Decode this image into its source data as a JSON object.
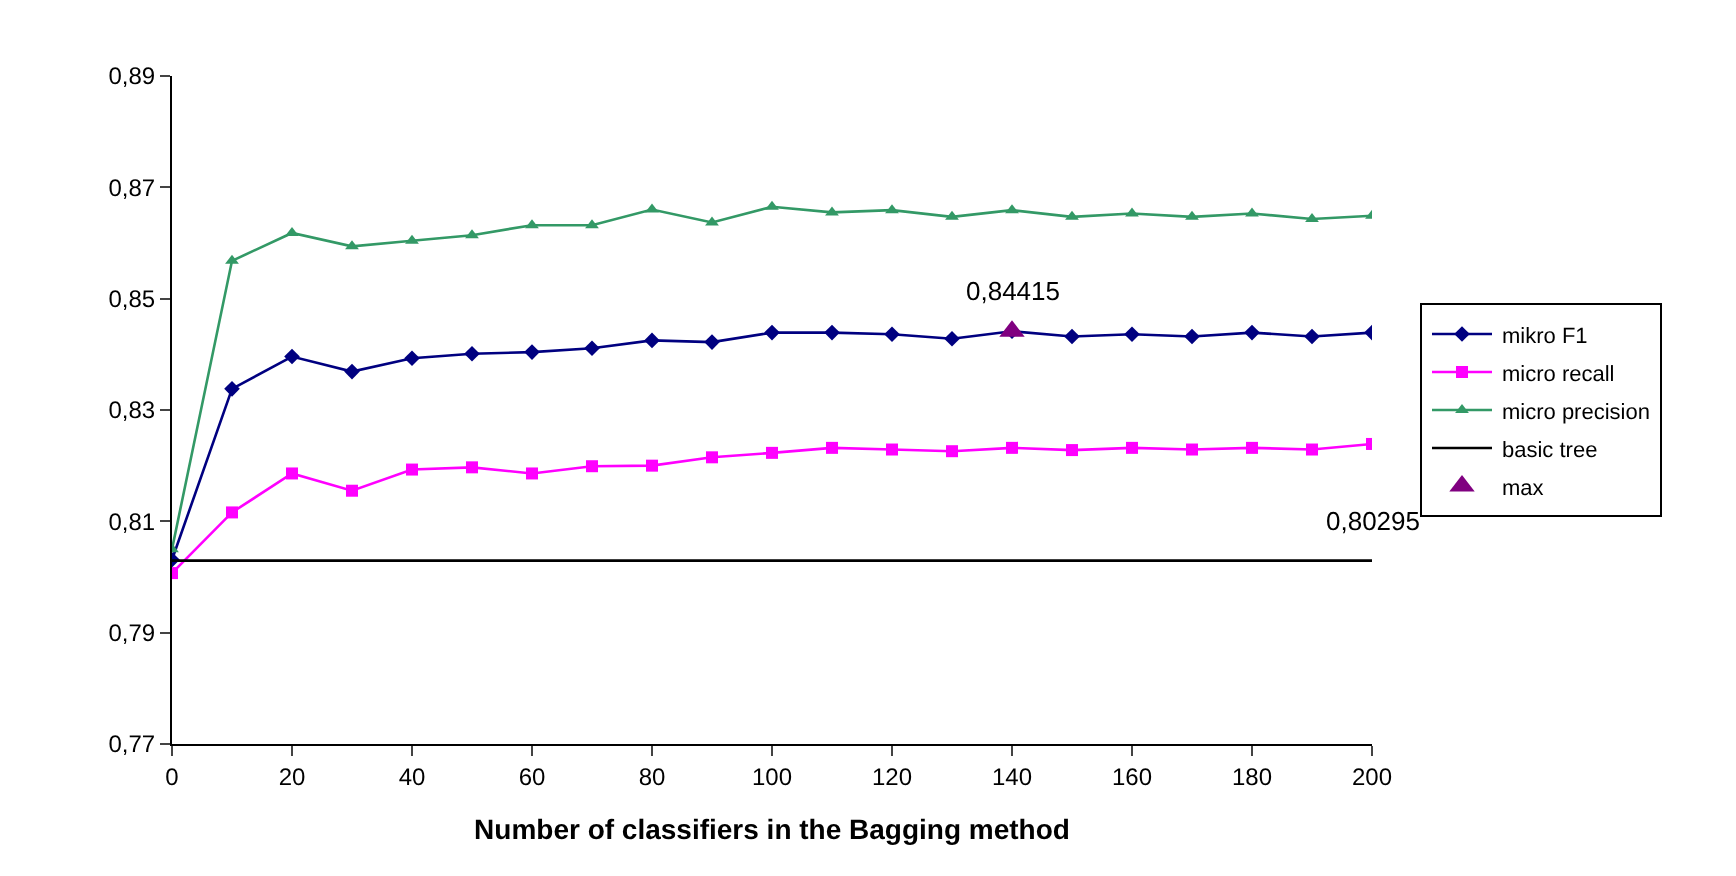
{
  "chart_data": {
    "type": "line",
    "xlabel": "Number of classifiers in the Bagging method",
    "x": [
      0,
      10,
      20,
      30,
      40,
      50,
      60,
      70,
      80,
      90,
      100,
      110,
      120,
      130,
      140,
      150,
      160,
      170,
      180,
      190,
      200
    ],
    "series": [
      {
        "name": "mikro F1",
        "color": "#000080",
        "marker": "diamond",
        "values": [
          0.8031,
          0.8338,
          0.8396,
          0.8369,
          0.8393,
          0.8401,
          0.8404,
          0.8411,
          0.8425,
          0.8422,
          0.8439,
          0.8439,
          0.8436,
          0.8428,
          0.84415,
          0.8432,
          0.8436,
          0.8432,
          0.8439,
          0.8432,
          0.8439
        ]
      },
      {
        "name": "micro recall",
        "color": "#ff00ff",
        "marker": "square",
        "values": [
          0.8007,
          0.8116,
          0.8186,
          0.8155,
          0.8193,
          0.8197,
          0.8186,
          0.8199,
          0.82,
          0.8215,
          0.8223,
          0.8232,
          0.8229,
          0.8226,
          0.8232,
          0.8228,
          0.8232,
          0.8229,
          0.8232,
          0.8229,
          0.8239
        ]
      },
      {
        "name": "micro precision",
        "color": "#339966",
        "marker": "triangle",
        "values": [
          0.805,
          0.8568,
          0.8618,
          0.8594,
          0.8604,
          0.8614,
          0.8632,
          0.8632,
          0.866,
          0.8637,
          0.8665,
          0.8655,
          0.8659,
          0.8647,
          0.8659,
          0.8647,
          0.8653,
          0.8647,
          0.8653,
          0.8643,
          0.8649
        ]
      },
      {
        "name": "basic tree",
        "color": "#000000",
        "marker": "none",
        "x": [
          0,
          200
        ],
        "values": [
          0.80295,
          0.80295
        ]
      },
      {
        "name": "max",
        "color": "#800080",
        "marker": "triangle",
        "type": "scatter",
        "x": [
          140
        ],
        "values": [
          0.84415
        ]
      }
    ],
    "annotations": [
      {
        "text": "0,84415",
        "x": 140,
        "y": 0.84415
      },
      {
        "text": "0,80295",
        "x": 200,
        "y": 0.80295
      }
    ],
    "xlim": [
      0,
      200
    ],
    "xticks": [
      0,
      20,
      40,
      60,
      80,
      100,
      120,
      140,
      160,
      180,
      200
    ],
    "ylim": [
      0.77,
      0.89
    ],
    "yticks": [
      {
        "value": 0.77,
        "label": "0,77"
      },
      {
        "value": 0.79,
        "label": "0,79"
      },
      {
        "value": 0.81,
        "label": "0,81"
      },
      {
        "value": 0.83,
        "label": "0,83"
      },
      {
        "value": 0.85,
        "label": "0,85"
      },
      {
        "value": 0.87,
        "label": "0,87"
      },
      {
        "value": 0.89,
        "label": "0,89"
      }
    ],
    "legend": "right"
  }
}
